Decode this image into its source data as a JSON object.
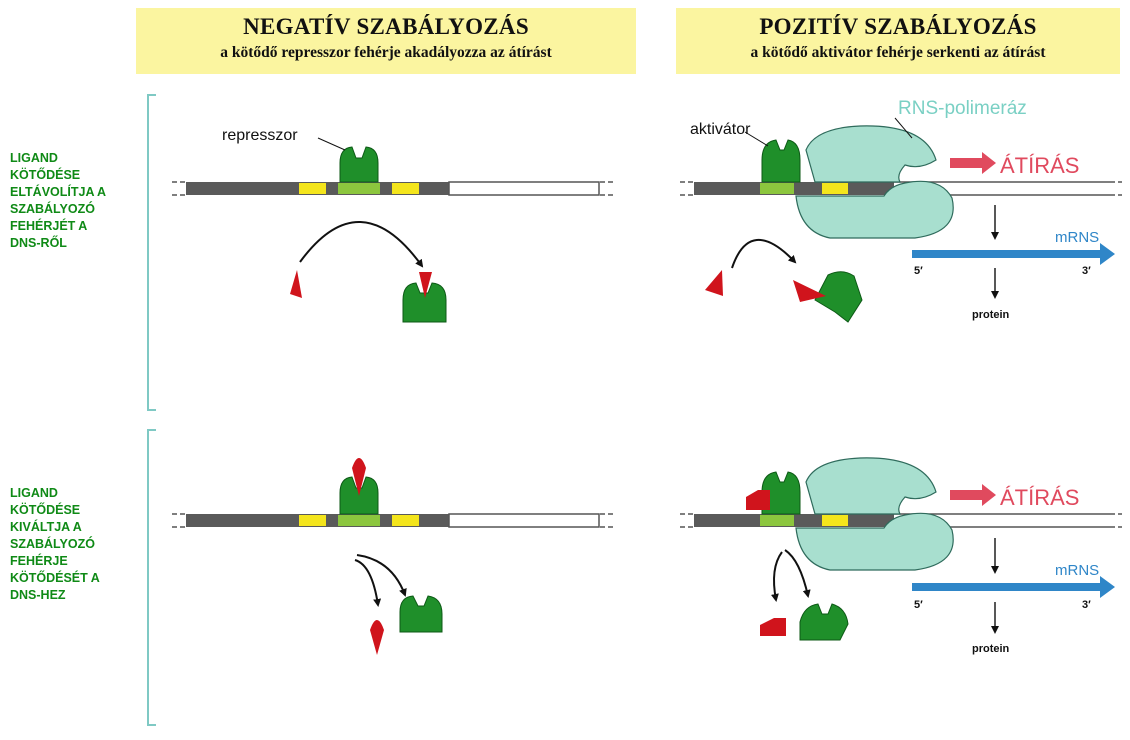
{
  "negative": {
    "title": "NEGATÍV SZABÁLYOZÁS",
    "subtitle": "a kötődő represszor fehérje akadályozza az átírást",
    "repressor_label": "represszor"
  },
  "positive": {
    "title": "POZITÍV SZABÁLYOZÁS",
    "subtitle": "a kötődő aktivátor fehérje serkenti az átírást",
    "activator_label": "aktivátor",
    "polymerase_label": "RNS-polimeráz",
    "transcription_label": "ÁTÍRÁS",
    "mrna_label": "mRNS",
    "five_prime": "5′",
    "three_prime": "3′",
    "protein_label": "protein"
  },
  "rows": [
    {
      "label": "LIGAND\nKÖTŐDÉSE\nELTÁVOLÍTJA A\nSZABÁLYOZÓ\nFEHÉRJÉT A\nDNS-RŐL"
    },
    {
      "label": "LIGAND\nKÖTŐDÉSE\nKIVÁLTJA A\nSZABÁLYOZÓ\nFEHÉRJE\nKÖTŐDÉSÉT A\nDNS-HEZ"
    }
  ],
  "colors": {
    "header_bg": "#fbf5a0",
    "protein_green": "#1f8f2a",
    "ligand_red": "#d0141c",
    "polymerase": "#a8dfcf",
    "mrna_blue": "#2f86c8",
    "arrow_pink": "#e04a5e",
    "label_green": "#0f8a16"
  }
}
